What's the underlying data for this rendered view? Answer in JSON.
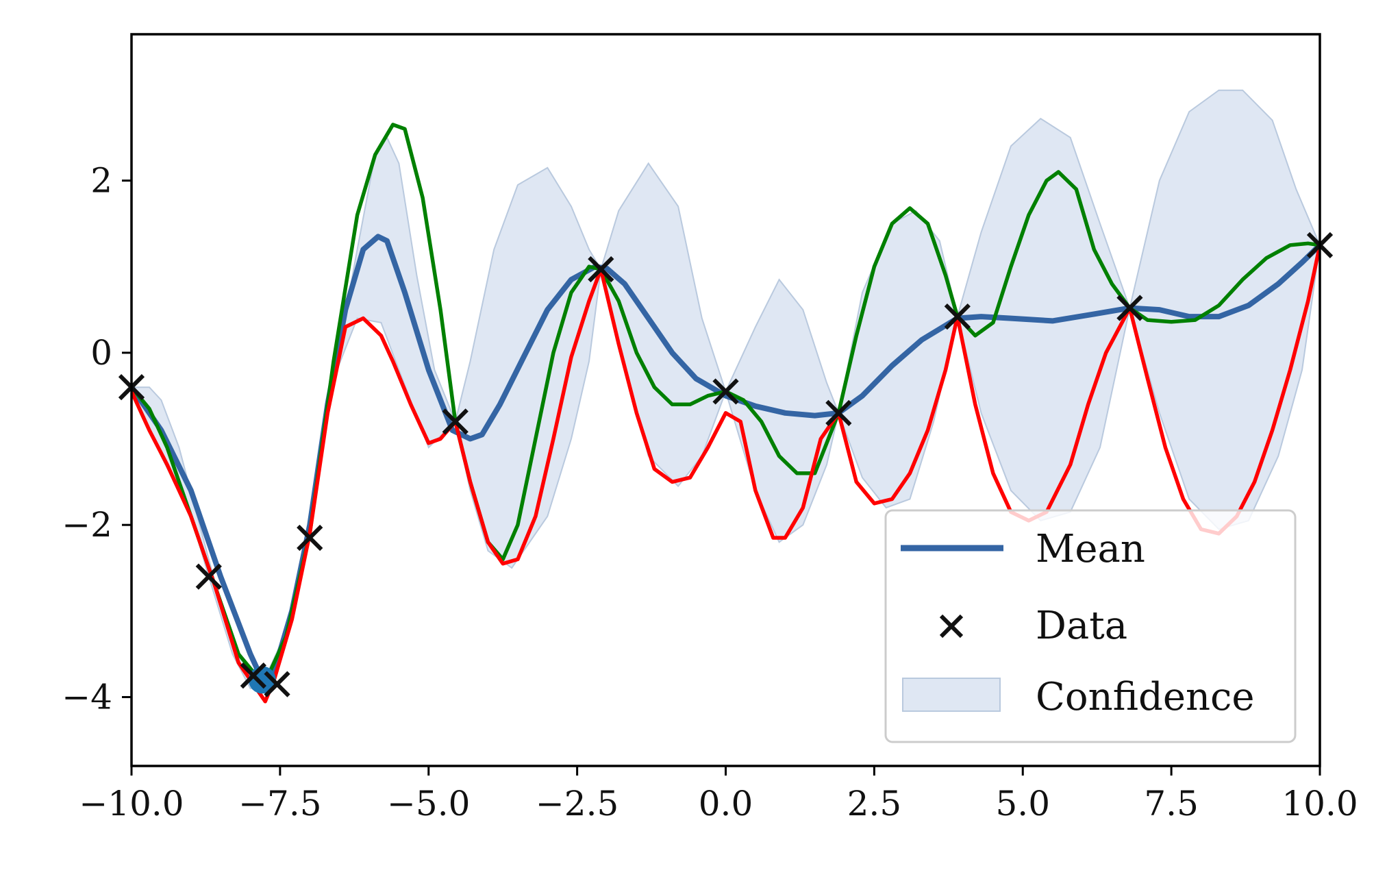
{
  "chart_data": {
    "type": "line",
    "xlim": [
      -10,
      10
    ],
    "ylim": [
      -4.8,
      3.7
    ],
    "xticks": [
      -10,
      -7.5,
      -5,
      -2.5,
      0,
      2.5,
      5,
      7.5,
      10
    ],
    "xtick_labels": [
      "−10.0",
      "−7.5",
      "−5.0",
      "−2.5",
      "0.0",
      "2.5",
      "5.0",
      "7.5",
      "10.0"
    ],
    "yticks": [
      -4,
      -2,
      0,
      2
    ],
    "ytick_labels": [
      "−4",
      "−2",
      "0",
      "2"
    ],
    "grid": false,
    "legend_position": "lower-right",
    "legend": {
      "mean": "Mean",
      "data": "Data",
      "confidence": "Confidence"
    },
    "colors": {
      "mean": "#3465a4",
      "data": "#111111",
      "confidence_fill": "#dfe7f3",
      "confidence_edge": "#b9c9de",
      "sample_green": "#008000",
      "sample_red": "#ff0000",
      "highlight_point": "#1f77b4"
    },
    "highlight_point": {
      "x": -7.8,
      "y": -3.8
    },
    "data_points": [
      {
        "x": -10.0,
        "y": -0.4
      },
      {
        "x": -8.7,
        "y": -2.6
      },
      {
        "x": -7.95,
        "y": -3.75
      },
      {
        "x": -7.55,
        "y": -3.85
      },
      {
        "x": -7.0,
        "y": -2.15
      },
      {
        "x": -4.55,
        "y": -0.8
      },
      {
        "x": -2.1,
        "y": 0.97
      },
      {
        "x": 0.0,
        "y": -0.45
      },
      {
        "x": 1.9,
        "y": -0.7
      },
      {
        "x": 3.9,
        "y": 0.42
      },
      {
        "x": 6.8,
        "y": 0.52
      },
      {
        "x": 10.0,
        "y": 1.25
      }
    ],
    "series": [
      {
        "role": "mean",
        "x": [
          -10,
          -9.5,
          -9,
          -8.5,
          -8,
          -7.8,
          -7.6,
          -7.3,
          -7.0,
          -6.7,
          -6.4,
          -6.1,
          -5.85,
          -5.7,
          -5.4,
          -5.0,
          -4.6,
          -4.3,
          -4.1,
          -3.8,
          -3.4,
          -3.0,
          -2.6,
          -2.2,
          -2.0,
          -1.7,
          -1.3,
          -0.9,
          -0.5,
          0.0,
          0.5,
          1.0,
          1.5,
          1.9,
          2.3,
          2.8,
          3.3,
          3.9,
          4.3,
          4.8,
          5.5,
          6.2,
          6.8,
          7.3,
          7.8,
          8.3,
          8.8,
          9.3,
          9.7,
          10.0
        ],
        "y": [
          -0.4,
          -0.9,
          -1.6,
          -2.6,
          -3.5,
          -3.8,
          -3.7,
          -3.0,
          -2.0,
          -0.6,
          0.5,
          1.2,
          1.35,
          1.3,
          0.7,
          -0.2,
          -0.9,
          -1.0,
          -0.95,
          -0.6,
          -0.05,
          0.5,
          0.85,
          1.0,
          0.98,
          0.8,
          0.4,
          0.0,
          -0.3,
          -0.5,
          -0.62,
          -0.7,
          -0.73,
          -0.7,
          -0.5,
          -0.15,
          0.15,
          0.4,
          0.42,
          0.4,
          0.37,
          0.45,
          0.52,
          0.5,
          0.42,
          0.42,
          0.55,
          0.8,
          1.05,
          1.25
        ]
      },
      {
        "role": "confidence_upper",
        "x": [
          -10,
          -9.7,
          -9.5,
          -9.2,
          -8.7,
          -8.3,
          -8.0,
          -7.7,
          -7.3,
          -7.0,
          -6.6,
          -6.2,
          -5.9,
          -5.7,
          -5.5,
          -5.2,
          -4.9,
          -4.55,
          -4.3,
          -3.9,
          -3.5,
          -3.0,
          -2.6,
          -2.3,
          -2.1,
          -1.8,
          -1.3,
          -0.8,
          -0.4,
          0.0,
          0.5,
          0.9,
          1.3,
          1.7,
          1.9,
          2.3,
          2.8,
          3.2,
          3.6,
          3.9,
          4.3,
          4.8,
          5.3,
          5.8,
          6.3,
          6.8,
          7.3,
          7.8,
          8.3,
          8.7,
          9.2,
          9.6,
          10.0
        ],
        "y": [
          -0.4,
          -0.4,
          -0.55,
          -1.1,
          -2.4,
          -3.4,
          -3.7,
          -3.7,
          -3.1,
          -2.1,
          -0.3,
          1.2,
          2.3,
          2.5,
          2.2,
          0.9,
          -0.2,
          -0.8,
          -0.1,
          1.2,
          1.95,
          2.15,
          1.7,
          1.2,
          0.97,
          1.65,
          2.2,
          1.7,
          0.4,
          -0.45,
          0.3,
          0.85,
          0.5,
          -0.35,
          -0.7,
          0.7,
          1.5,
          1.65,
          1.3,
          0.42,
          1.4,
          2.4,
          2.72,
          2.5,
          1.5,
          0.52,
          2.0,
          2.8,
          3.05,
          3.05,
          2.7,
          1.9,
          1.25
        ]
      },
      {
        "role": "confidence_lower",
        "x": [
          -10,
          -9.5,
          -9.0,
          -8.7,
          -8.3,
          -8.0,
          -7.7,
          -7.3,
          -7.0,
          -6.6,
          -6.2,
          -5.8,
          -5.5,
          -5.0,
          -4.55,
          -4.3,
          -4.0,
          -3.6,
          -3.0,
          -2.6,
          -2.3,
          -2.1,
          -1.8,
          -1.3,
          -0.8,
          -0.4,
          0.0,
          0.5,
          0.9,
          1.3,
          1.7,
          1.9,
          2.3,
          2.7,
          3.1,
          3.5,
          3.9,
          4.3,
          4.8,
          5.3,
          5.8,
          6.3,
          6.8,
          7.3,
          7.8,
          8.3,
          8.8,
          9.3,
          9.7,
          10.0
        ],
        "y": [
          -0.4,
          -1.2,
          -1.9,
          -2.6,
          -3.5,
          -3.9,
          -3.9,
          -3.1,
          -2.15,
          -0.3,
          0.4,
          0.35,
          -0.2,
          -1.1,
          -0.8,
          -1.6,
          -2.3,
          -2.5,
          -1.9,
          -1.0,
          -0.1,
          0.97,
          0.1,
          -1.2,
          -1.55,
          -1.2,
          -0.45,
          -1.6,
          -2.2,
          -2.0,
          -1.3,
          -0.7,
          -1.45,
          -1.8,
          -1.7,
          -0.8,
          0.42,
          -0.7,
          -1.6,
          -1.95,
          -1.85,
          -1.1,
          0.52,
          -0.7,
          -1.7,
          -2.05,
          -1.95,
          -1.2,
          -0.2,
          1.25
        ]
      },
      {
        "role": "sample_green",
        "x": [
          -10,
          -9.7,
          -9.4,
          -9.0,
          -8.6,
          -8.2,
          -7.9,
          -7.7,
          -7.4,
          -7.0,
          -6.6,
          -6.2,
          -5.9,
          -5.6,
          -5.4,
          -5.1,
          -4.8,
          -4.55,
          -4.3,
          -4.0,
          -3.75,
          -3.5,
          -3.2,
          -2.9,
          -2.6,
          -2.3,
          -2.1,
          -1.8,
          -1.5,
          -1.2,
          -0.9,
          -0.6,
          -0.3,
          0.0,
          0.3,
          0.6,
          0.9,
          1.2,
          1.5,
          1.9,
          2.2,
          2.5,
          2.8,
          3.1,
          3.4,
          3.7,
          3.9,
          4.2,
          4.5,
          4.8,
          5.1,
          5.4,
          5.6,
          5.9,
          6.2,
          6.5,
          6.8,
          7.1,
          7.5,
          7.9,
          8.3,
          8.7,
          9.1,
          9.5,
          9.8,
          10.0
        ],
        "y": [
          -0.4,
          -0.65,
          -1.1,
          -1.9,
          -2.7,
          -3.5,
          -3.75,
          -3.75,
          -3.3,
          -2.1,
          -0.1,
          1.6,
          2.3,
          2.65,
          2.6,
          1.8,
          0.5,
          -0.8,
          -1.5,
          -2.2,
          -2.4,
          -2.0,
          -1.0,
          0.0,
          0.7,
          1.0,
          0.97,
          0.6,
          0.0,
          -0.4,
          -0.6,
          -0.6,
          -0.5,
          -0.45,
          -0.55,
          -0.8,
          -1.2,
          -1.4,
          -1.4,
          -0.7,
          0.2,
          1.0,
          1.5,
          1.68,
          1.5,
          0.9,
          0.42,
          0.2,
          0.35,
          1.0,
          1.6,
          2.0,
          2.1,
          1.9,
          1.2,
          0.8,
          0.52,
          0.38,
          0.36,
          0.38,
          0.55,
          0.85,
          1.1,
          1.25,
          1.27,
          1.25
        ]
      },
      {
        "role": "sample_red",
        "x": [
          -10,
          -9.7,
          -9.4,
          -9.0,
          -8.6,
          -8.2,
          -7.9,
          -7.75,
          -7.6,
          -7.3,
          -7.0,
          -6.7,
          -6.4,
          -6.1,
          -5.8,
          -5.6,
          -5.3,
          -5.0,
          -4.8,
          -4.55,
          -4.3,
          -4.0,
          -3.75,
          -3.5,
          -3.2,
          -2.9,
          -2.6,
          -2.3,
          -2.1,
          -1.8,
          -1.5,
          -1.2,
          -0.9,
          -0.6,
          -0.3,
          0.0,
          0.25,
          0.5,
          0.8,
          1.0,
          1.3,
          1.6,
          1.9,
          2.2,
          2.5,
          2.8,
          3.1,
          3.4,
          3.7,
          3.9,
          4.2,
          4.5,
          4.8,
          5.1,
          5.4,
          5.8,
          6.1,
          6.4,
          6.8,
          7.1,
          7.4,
          7.7,
          8.0,
          8.3,
          8.6,
          8.9,
          9.2,
          9.5,
          9.8,
          10.0
        ],
        "y": [
          -0.45,
          -0.9,
          -1.3,
          -1.9,
          -2.7,
          -3.6,
          -3.9,
          -4.05,
          -3.8,
          -3.1,
          -2.1,
          -0.7,
          0.3,
          0.4,
          0.2,
          -0.1,
          -0.6,
          -1.05,
          -1.0,
          -0.8,
          -1.5,
          -2.2,
          -2.45,
          -2.4,
          -1.9,
          -1.0,
          -0.05,
          0.6,
          0.97,
          0.1,
          -0.7,
          -1.35,
          -1.5,
          -1.45,
          -1.1,
          -0.7,
          -0.8,
          -1.6,
          -2.15,
          -2.15,
          -1.8,
          -1.0,
          -0.7,
          -1.5,
          -1.75,
          -1.7,
          -1.4,
          -0.9,
          -0.2,
          0.42,
          -0.6,
          -1.4,
          -1.85,
          -1.95,
          -1.85,
          -1.3,
          -0.6,
          0.0,
          0.52,
          -0.3,
          -1.1,
          -1.7,
          -2.05,
          -2.1,
          -1.9,
          -1.5,
          -0.9,
          -0.2,
          0.6,
          1.25
        ]
      }
    ]
  }
}
